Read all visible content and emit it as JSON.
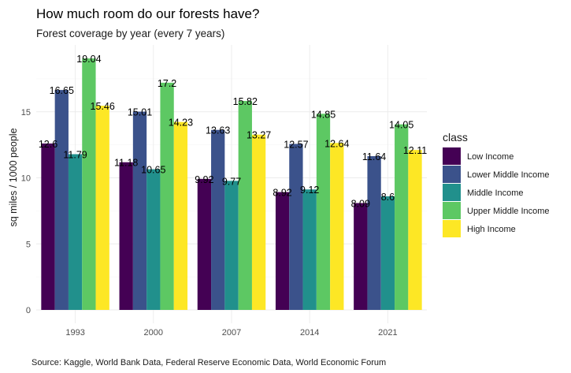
{
  "chart_data": {
    "type": "bar",
    "title": "How much room do our forests have?",
    "subtitle": "Forest coverage by year (every 7 years)",
    "ylabel": "sq miles / 1000 people",
    "xlabel": "",
    "caption": "Source: Kaggle, World Bank Data, Federal Reserve Economic Data, World Economic Forum",
    "categories": [
      "1993",
      "2000",
      "2007",
      "2014",
      "2021"
    ],
    "ylim": [
      0,
      19.6
    ],
    "yticks": [
      0,
      5,
      10,
      15
    ],
    "grid": true,
    "legend": {
      "title": "class",
      "placement": "right"
    },
    "series": [
      {
        "name": "Low Income",
        "color": "#440154",
        "values": [
          12.6,
          11.18,
          9.92,
          8.92,
          8.09
        ]
      },
      {
        "name": "Lower Middle Income",
        "color": "#3b528b",
        "values": [
          16.65,
          15.01,
          13.63,
          12.57,
          11.64
        ]
      },
      {
        "name": "Middle Income",
        "color": "#21908c",
        "values": [
          11.79,
          10.65,
          9.77,
          9.12,
          8.6
        ]
      },
      {
        "name": "Upper Middle Income",
        "color": "#5dc863",
        "values": [
          19.04,
          17.2,
          15.82,
          14.85,
          14.05
        ]
      },
      {
        "name": "High Income",
        "color": "#fde725",
        "values": [
          15.46,
          14.23,
          13.27,
          12.64,
          12.11
        ]
      }
    ]
  }
}
